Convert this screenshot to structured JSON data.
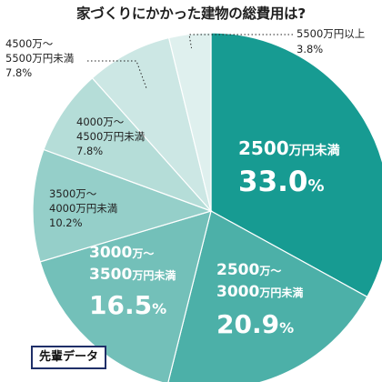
{
  "chart_data": {
    "type": "pie",
    "title": "家づくりにかかった建物の総費用は?",
    "slices": [
      {
        "label": "2500万円未満",
        "value": 33.0,
        "value_text": "33.0%",
        "color": "#179b92"
      },
      {
        "label": "2500万～3000万円未満",
        "value": 20.9,
        "value_text": "20.9%",
        "color": "#4cb0a8"
      },
      {
        "label": "3000万～3500万円未満",
        "value": 16.5,
        "value_text": "16.5%",
        "color": "#73c0b9"
      },
      {
        "label": "3500万～4000万円未満",
        "value": 10.2,
        "value_text": "10.2%",
        "color": "#95cfc9"
      },
      {
        "label": "4000万～4500万円未満",
        "value": 7.8,
        "value_text": "7.8%",
        "color": "#b5ddd8"
      },
      {
        "label": "4500万～5500万円未満",
        "value": 7.8,
        "value_text": "7.8%",
        "color": "#cce7e4"
      },
      {
        "label": "5500万円以上",
        "value": 3.8,
        "value_text": "3.8%",
        "color": "#dff0ee"
      }
    ]
  },
  "source_label": "先輩データ"
}
